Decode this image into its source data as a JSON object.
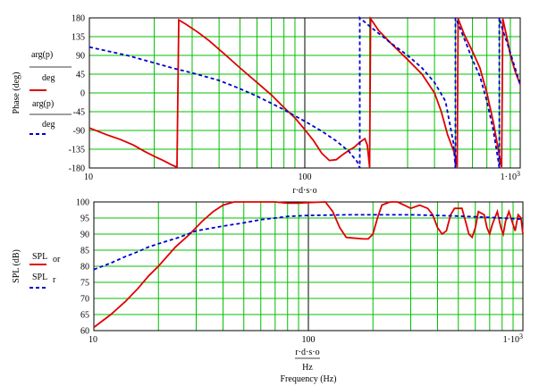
{
  "colors": {
    "grid": "#00c000",
    "frame": "#000000",
    "series_measured": "#e00000",
    "series_model": "#0000d0"
  },
  "chart_data": [
    {
      "type": "line",
      "xscale": "log",
      "xlim": [
        10,
        1000
      ],
      "ylim": [
        -180,
        180
      ],
      "xlabel_top": "r·d·s·o",
      "ylabel": "Phase (deg)",
      "yticks": [
        "180",
        "135",
        "90",
        "45",
        "0",
        "-45",
        "-90",
        "-135",
        "-180"
      ],
      "xticks": [
        "10",
        "100",
        "1·10³"
      ],
      "legend": [
        {
          "expr": "arg(p_or)",
          "denom": "deg",
          "style": "solid-red"
        },
        {
          "expr": "arg(p_r)",
          "denom": "deg",
          "style": "dashed-blue"
        }
      ],
      "series": [
        {
          "name": "arg(p_or)/deg",
          "points": [
            [
              10,
              -84
            ],
            [
              12,
              -100
            ],
            [
              14,
              -112
            ],
            [
              16,
              -125
            ],
            [
              18,
              -140
            ],
            [
              20,
              -152
            ],
            [
              22,
              -162
            ],
            [
              24,
              -172
            ],
            [
              25.5,
              -178
            ],
            [
              26,
              175
            ],
            [
              28,
              165
            ],
            [
              32,
              145
            ],
            [
              36,
              125
            ],
            [
              42,
              95
            ],
            [
              50,
              60
            ],
            [
              60,
              25
            ],
            [
              70,
              -5
            ],
            [
              80,
              -35
            ],
            [
              90,
              -60
            ],
            [
              100,
              -88
            ],
            [
              110,
              -115
            ],
            [
              120,
              -145
            ],
            [
              130,
              -162
            ],
            [
              140,
              -160
            ],
            [
              150,
              -148
            ],
            [
              160,
              -138
            ],
            [
              170,
              -130
            ],
            [
              180,
              -118
            ],
            [
              190,
              -110
            ],
            [
              195,
              -125
            ],
            [
              200,
              -178
            ],
            [
              202,
              178
            ],
            [
              220,
              150
            ],
            [
              250,
              120
            ],
            [
              300,
              80
            ],
            [
              350,
              45
            ],
            [
              400,
              0
            ],
            [
              430,
              -45
            ],
            [
              460,
              -100
            ],
            [
              500,
              -150
            ],
            [
              510,
              -178
            ],
            [
              515,
              178
            ],
            [
              550,
              140
            ],
            [
              600,
              100
            ],
            [
              650,
              60
            ],
            [
              700,
              0
            ],
            [
              750,
              -70
            ],
            [
              800,
              -150
            ],
            [
              820,
              -178
            ],
            [
              830,
              178
            ],
            [
              870,
              130
            ],
            [
              900,
              90
            ],
            [
              950,
              50
            ],
            [
              1000,
              20
            ]
          ]
        },
        {
          "name": "arg(p_r)/deg",
          "points": [
            [
              10,
              110
            ],
            [
              15,
              90
            ],
            [
              20,
              72
            ],
            [
              25,
              58
            ],
            [
              30,
              48
            ],
            [
              40,
              30
            ],
            [
              50,
              10
            ],
            [
              60,
              -8
            ],
            [
              70,
              -25
            ],
            [
              80,
              -40
            ],
            [
              90,
              -55
            ],
            [
              100,
              -68
            ],
            [
              120,
              -92
            ],
            [
              140,
              -115
            ],
            [
              160,
              -140
            ],
            [
              175,
              -165
            ],
            [
              180,
              -180
            ],
            [
              180,
              180
            ],
            [
              200,
              160
            ],
            [
              250,
              120
            ],
            [
              300,
              90
            ],
            [
              350,
              60
            ],
            [
              400,
              25
            ],
            [
              450,
              -20
            ],
            [
              490,
              -120
            ],
            [
              500,
              -180
            ],
            [
              500,
              180
            ],
            [
              520,
              160
            ],
            [
              560,
              120
            ],
            [
              600,
              80
            ],
            [
              650,
              40
            ],
            [
              700,
              -20
            ],
            [
              750,
              -90
            ],
            [
              790,
              -160
            ],
            [
              800,
              -180
            ],
            [
              800,
              180
            ],
            [
              830,
              150
            ],
            [
              870,
              120
            ],
            [
              920,
              80
            ],
            [
              960,
              50
            ],
            [
              1000,
              20
            ]
          ]
        }
      ]
    },
    {
      "type": "line",
      "xscale": "log",
      "xlim": [
        10,
        1000
      ],
      "ylim": [
        60,
        100
      ],
      "xlabel": "Frequency (Hz)",
      "xlabel_expr_num": "r·d·s·o",
      "xlabel_expr_den": "Hz",
      "ylabel": "SPL (dB)",
      "yticks": [
        "100",
        "95",
        "90",
        "85",
        "80",
        "75",
        "70",
        "65",
        "60"
      ],
      "xticks": [
        "10",
        "100",
        "1·10³"
      ],
      "legend": [
        {
          "expr": "SPL_or",
          "style": "solid-red"
        },
        {
          "expr": "SPL_r",
          "style": "dashed-blue"
        }
      ],
      "series": [
        {
          "name": "SPL_or",
          "points": [
            [
              10,
              61
            ],
            [
              12,
              65
            ],
            [
              14,
              69
            ],
            [
              16,
              73
            ],
            [
              18,
              77
            ],
            [
              20,
              80
            ],
            [
              24,
              86
            ],
            [
              28,
              90
            ],
            [
              32,
              94
            ],
            [
              36,
              97
            ],
            [
              40,
              99
            ],
            [
              45,
              100
            ],
            [
              50,
              100
            ],
            [
              60,
              100
            ],
            [
              70,
              100
            ],
            [
              80,
              99.6
            ],
            [
              90,
              99.6
            ],
            [
              100,
              99.8
            ],
            [
              120,
              100
            ],
            [
              130,
              97
            ],
            [
              140,
              92
            ],
            [
              150,
              89
            ],
            [
              160,
              88.8
            ],
            [
              180,
              88.5
            ],
            [
              190,
              88.5
            ],
            [
              200,
              90
            ],
            [
              210,
              95
            ],
            [
              220,
              99
            ],
            [
              240,
              100
            ],
            [
              260,
              100
            ],
            [
              280,
              99
            ],
            [
              300,
              98
            ],
            [
              330,
              99
            ],
            [
              360,
              98
            ],
            [
              380,
              96
            ],
            [
              400,
              92
            ],
            [
              420,
              90
            ],
            [
              440,
              91
            ],
            [
              460,
              96
            ],
            [
              480,
              98
            ],
            [
              520,
              98
            ],
            [
              540,
              94
            ],
            [
              560,
              90
            ],
            [
              580,
              89
            ],
            [
              600,
              92
            ],
            [
              620,
              97
            ],
            [
              660,
              96
            ],
            [
              680,
              92
            ],
            [
              700,
              90
            ],
            [
              720,
              93
            ],
            [
              760,
              97
            ],
            [
              790,
              92
            ],
            [
              810,
              90
            ],
            [
              830,
              94
            ],
            [
              860,
              97
            ],
            [
              900,
              93
            ],
            [
              920,
              91
            ],
            [
              950,
              96
            ],
            [
              980,
              95
            ],
            [
              1000,
              90
            ]
          ]
        },
        {
          "name": "SPL_r",
          "points": [
            [
              10,
              79
            ],
            [
              12,
              81
            ],
            [
              14,
              83
            ],
            [
              16,
              84.5
            ],
            [
              18,
              86
            ],
            [
              20,
              87
            ],
            [
              25,
              89
            ],
            [
              30,
              91
            ],
            [
              40,
              92.5
            ],
            [
              50,
              93.5
            ],
            [
              60,
              94.5
            ],
            [
              70,
              95
            ],
            [
              80,
              95.5
            ],
            [
              100,
              95.8
            ],
            [
              150,
              96
            ],
            [
              200,
              96
            ],
            [
              300,
              96
            ],
            [
              400,
              95.8
            ],
            [
              500,
              95.6
            ],
            [
              600,
              95.4
            ],
            [
              700,
              95.2
            ],
            [
              800,
              95
            ],
            [
              900,
              94.8
            ],
            [
              1000,
              94.6
            ]
          ]
        }
      ]
    }
  ]
}
